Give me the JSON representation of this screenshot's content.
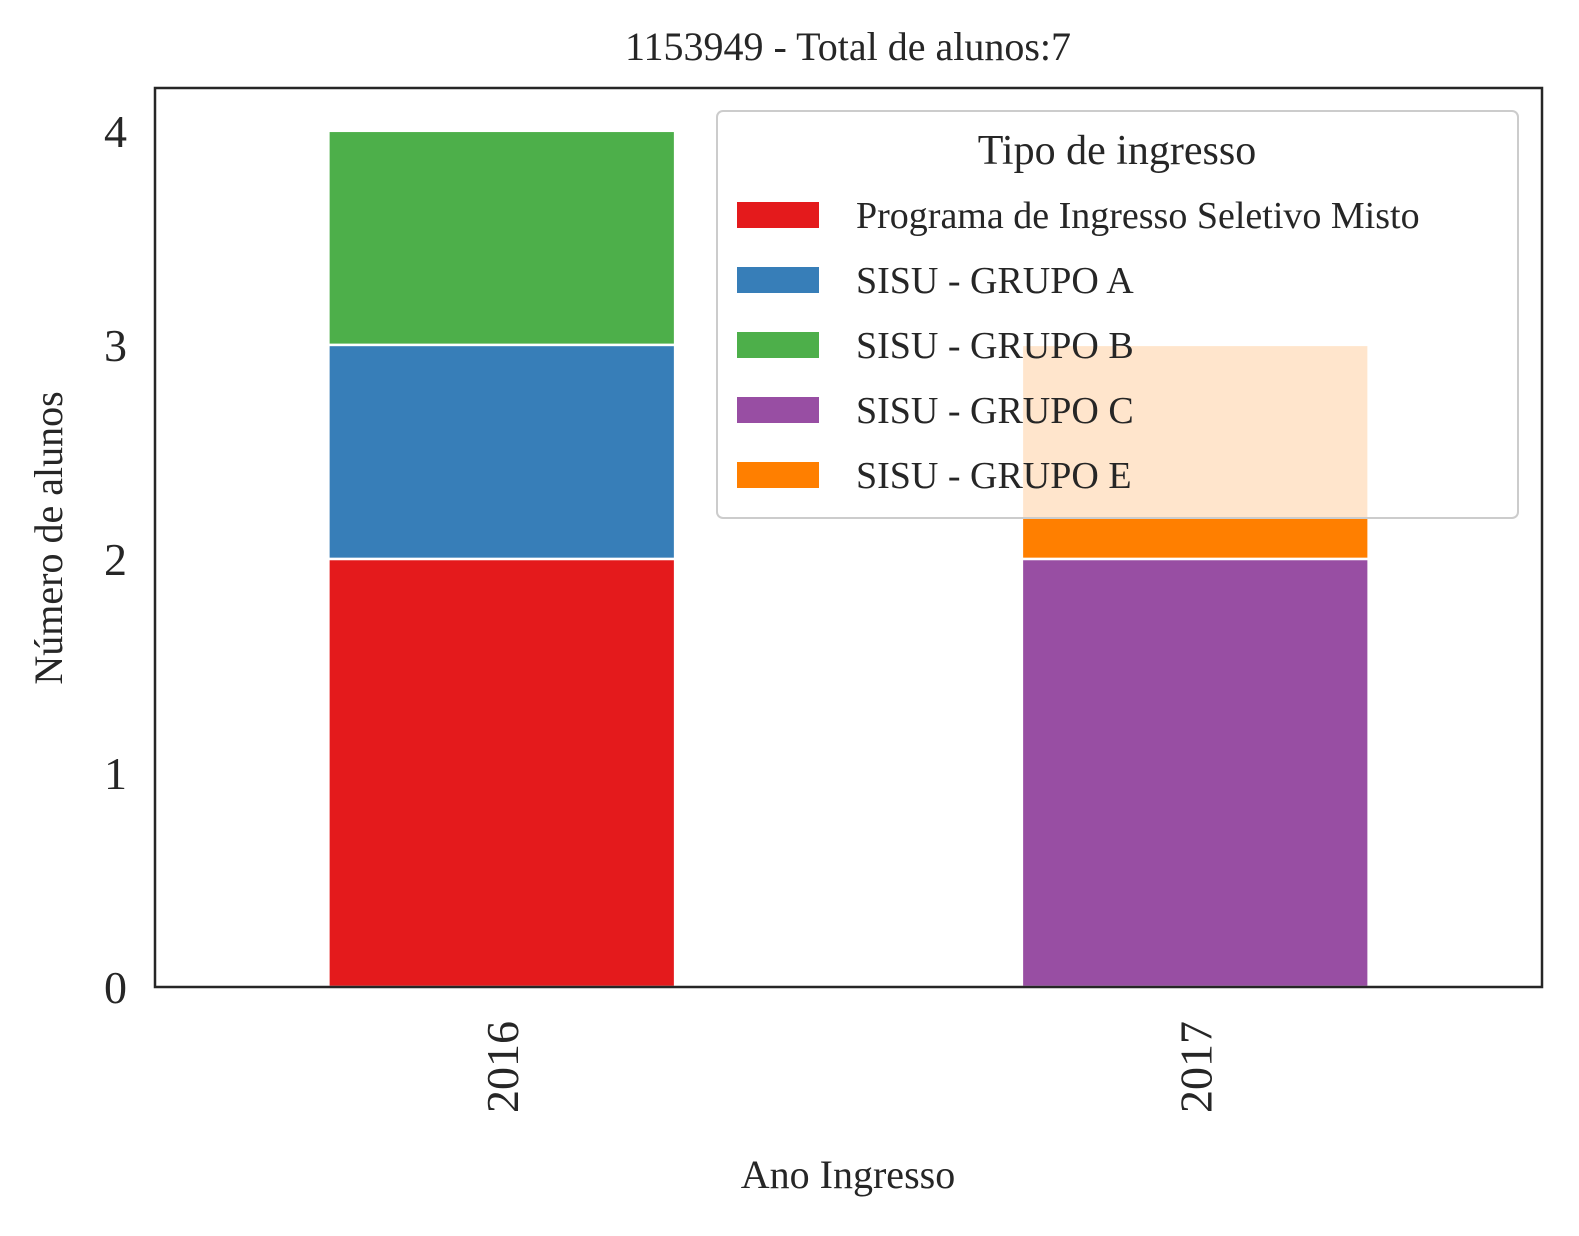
{
  "chart_data": {
    "type": "bar",
    "stacked": true,
    "title": "1153949 - Total de alunos:7",
    "xlabel": "Ano Ingresso",
    "ylabel": "Número de alunos",
    "categories": [
      "2016",
      "2017"
    ],
    "ylim": [
      0,
      4.2
    ],
    "yticks": [
      "0",
      "1",
      "2",
      "3",
      "4"
    ],
    "grid": false,
    "legend": {
      "title": "Tipo de ingresso",
      "placement": "top-right"
    },
    "series": [
      {
        "name": "Programa de Ingresso Seletivo Misto",
        "values": [
          2,
          0
        ],
        "color": "#e41a1c"
      },
      {
        "name": "SISU - GRUPO A",
        "values": [
          1,
          0
        ],
        "color": "#377eb8"
      },
      {
        "name": "SISU - GRUPO B",
        "values": [
          1,
          0
        ],
        "color": "#4daf4a"
      },
      {
        "name": "SISU - GRUPO C",
        "values": [
          0,
          2
        ],
        "color": "#984ea3"
      },
      {
        "name": "SISU - GRUPO E",
        "values": [
          0,
          1
        ],
        "color": "#ff7f00"
      }
    ]
  }
}
